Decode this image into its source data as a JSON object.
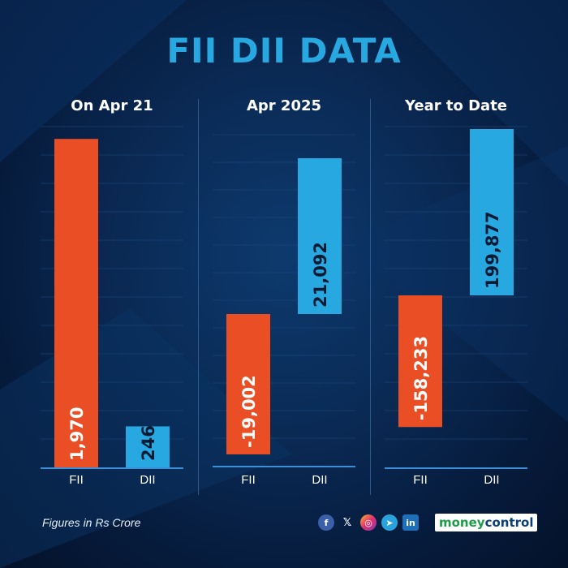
{
  "title": "FII DII DATA",
  "footnote": "Figures in Rs Crore",
  "brand": {
    "part1": "money",
    "part2": "control"
  },
  "socials": [
    "facebook-icon",
    "x-icon",
    "instagram-icon",
    "telegram-icon",
    "linkedin-icon"
  ],
  "colors": {
    "title": "#28a8e0",
    "fii": "#e94e25",
    "dii": "#28a8e0",
    "grid": "#1e4a7e",
    "baseline": "#3a8fd8"
  },
  "chart_data": [
    {
      "type": "bar",
      "title": "On Apr 21",
      "categories": [
        "FII",
        "DII"
      ],
      "values": [
        1970,
        246
      ],
      "value_labels": [
        "1,970",
        "246"
      ],
      "xlabel": "",
      "ylabel": "",
      "ylim": [
        0,
        2000
      ]
    },
    {
      "type": "bar",
      "title": "Apr 2025",
      "categories": [
        "FII",
        "DII"
      ],
      "values": [
        -19002,
        21092
      ],
      "value_labels": [
        "-19,002",
        "21,092"
      ],
      "xlabel": "",
      "ylabel": "",
      "ylim": [
        -25000,
        25000
      ]
    },
    {
      "type": "bar",
      "title": "Year to Date",
      "categories": [
        "FII",
        "DII"
      ],
      "values": [
        -158233,
        199877
      ],
      "value_labels": [
        "-158,233",
        "199,877"
      ],
      "xlabel": "",
      "ylabel": "",
      "ylim": [
        -200000,
        250000
      ]
    }
  ]
}
